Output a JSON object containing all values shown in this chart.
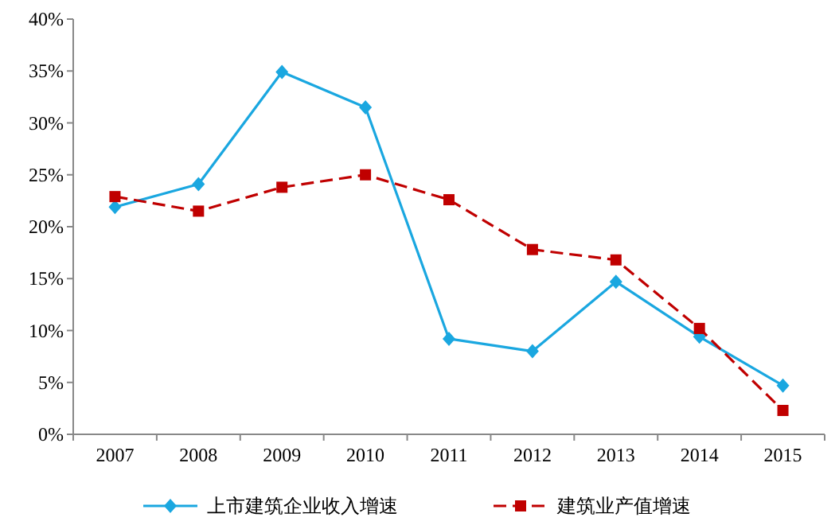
{
  "chart_data": {
    "type": "line",
    "categories": [
      "2007",
      "2008",
      "2009",
      "2010",
      "2011",
      "2012",
      "2013",
      "2014",
      "2015"
    ],
    "series": [
      {
        "name": "上市建筑企业收入增速",
        "color": "#1aa7e0",
        "marker": "diamond",
        "line_style": "solid",
        "values": [
          21.9,
          24.1,
          34.9,
          31.5,
          9.2,
          8.0,
          14.7,
          9.4,
          4.7
        ]
      },
      {
        "name": "建筑业产值增速",
        "color": "#c00000",
        "marker": "square",
        "line_style": "dashed",
        "values": [
          22.9,
          21.5,
          23.8,
          25.0,
          22.6,
          17.8,
          16.8,
          10.2,
          2.3
        ]
      }
    ],
    "ylim": [
      0,
      40
    ],
    "yticks": [
      {
        "value": 0,
        "label": "0%"
      },
      {
        "value": 5,
        "label": "5%"
      },
      {
        "value": 10,
        "label": "10%"
      },
      {
        "value": 15,
        "label": "15%"
      },
      {
        "value": 20,
        "label": "20%"
      },
      {
        "value": 25,
        "label": "25%"
      },
      {
        "value": 30,
        "label": "30%"
      },
      {
        "value": 35,
        "label": "35%"
      },
      {
        "value": 40,
        "label": "40%"
      }
    ],
    "grid": false,
    "legend": "bottom"
  }
}
